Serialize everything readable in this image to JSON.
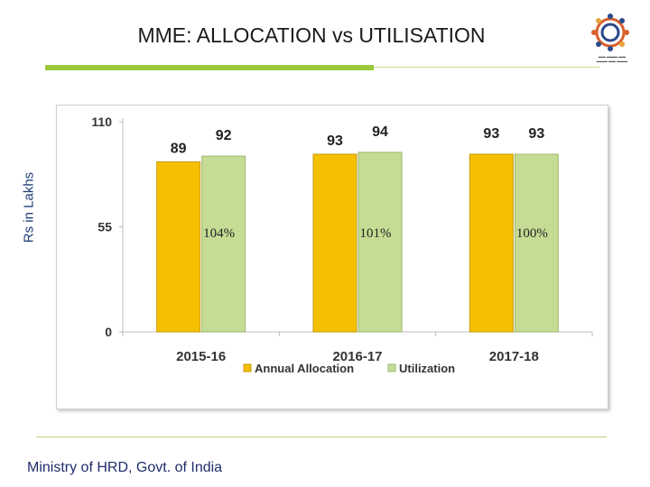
{
  "slide": {
    "title": "MME: ALLOCATION vs UTILISATION",
    "ylabel": "Rs in Lakhs",
    "footer": "Ministry of HRD, Govt. of India"
  },
  "colors": {
    "allocation": "#f5c000",
    "utilization": "#c5dc94",
    "accent_green": "#9cc93b",
    "title_text": "#1a1a1a",
    "ylabel_text": "#1f3f7a"
  },
  "chart_data": {
    "type": "bar",
    "title": "",
    "xlabel": "",
    "ylabel": "Rs in Lakhs",
    "categories": [
      "2015-16",
      "2016-17",
      "2017-18"
    ],
    "series": [
      {
        "name": "Annual Allocation",
        "values": [
          89,
          93,
          93
        ]
      },
      {
        "name": "Utilization",
        "values": [
          92,
          94,
          93
        ]
      }
    ],
    "annotations": [
      "104%",
      "101%",
      "100%"
    ],
    "ylim": [
      0,
      110
    ],
    "yticks": [
      0,
      55,
      110
    ],
    "grid": false,
    "legend": "bottom"
  }
}
